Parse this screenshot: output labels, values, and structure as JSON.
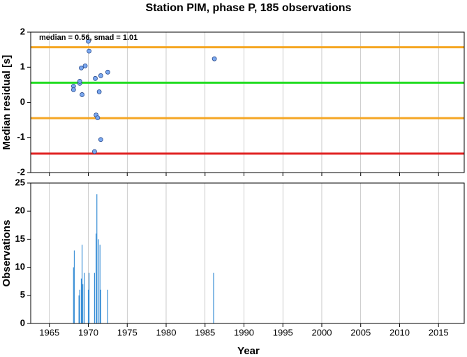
{
  "chart_data": [
    {
      "type": "scatter",
      "title": "Station PIM, phase P, 185 observations",
      "y_label": "Median residual [s]",
      "annotation": "median = 0.56, smad = 1.01",
      "x": [
        1968.1,
        1968.1,
        1968.9,
        1968.9,
        1969.1,
        1969.2,
        1969.6,
        1970.0,
        1970.1,
        1970.9,
        1971.0,
        1971.2,
        1971.4,
        1971.6,
        1971.6,
        1970.8,
        1972.5,
        1986.2
      ],
      "series": [
        {
          "name": "residual",
          "color": "#7aa8f0",
          "values": [
            0.46,
            0.36,
            0.54,
            0.6,
            0.98,
            0.22,
            1.04,
            1.74,
            1.46,
            0.68,
            -0.36,
            -0.44,
            0.3,
            0.76,
            -1.06,
            -1.4,
            0.86,
            1.24
          ]
        }
      ],
      "hlines": [
        {
          "value": 1.57,
          "color": "#f5a623"
        },
        {
          "value": 0.56,
          "color": "#22dd22"
        },
        {
          "value": -0.45,
          "color": "#f5a623"
        },
        {
          "value": -1.46,
          "color": "#e02020"
        }
      ],
      "xlim": [
        1962.6,
        2018.3
      ],
      "xticks": [
        1965,
        1970,
        1975,
        1980,
        1985,
        1990,
        1995,
        2000,
        2005,
        2010,
        2015
      ],
      "ylim": [
        -2,
        2
      ],
      "yticks": [
        -2,
        -1,
        0,
        1,
        2
      ],
      "grid": true
    },
    {
      "type": "bar",
      "y_label": "Observations",
      "x_label": "Year",
      "x": [
        1968.1,
        1968.2,
        1968.8,
        1968.9,
        1969.1,
        1969.2,
        1969.3,
        1969.5,
        1970.0,
        1970.1,
        1970.8,
        1971.0,
        1971.1,
        1971.3,
        1971.5,
        1971.6,
        1972.5,
        1986.1
      ],
      "series": [
        {
          "name": "observations",
          "color": "#3a8fd6",
          "values": [
            10,
            13,
            5,
            6,
            8,
            14,
            7,
            9,
            6,
            9,
            9,
            16,
            23,
            15,
            14,
            6,
            6,
            9
          ]
        }
      ],
      "xlim": [
        1962.6,
        2018.3
      ],
      "xticks": [
        1965,
        1970,
        1975,
        1980,
        1985,
        1990,
        1995,
        2000,
        2005,
        2010,
        2015
      ],
      "ylim": [
        0,
        25
      ],
      "yticks": [
        0,
        5,
        10,
        15,
        20,
        25
      ],
      "grid": true
    }
  ]
}
